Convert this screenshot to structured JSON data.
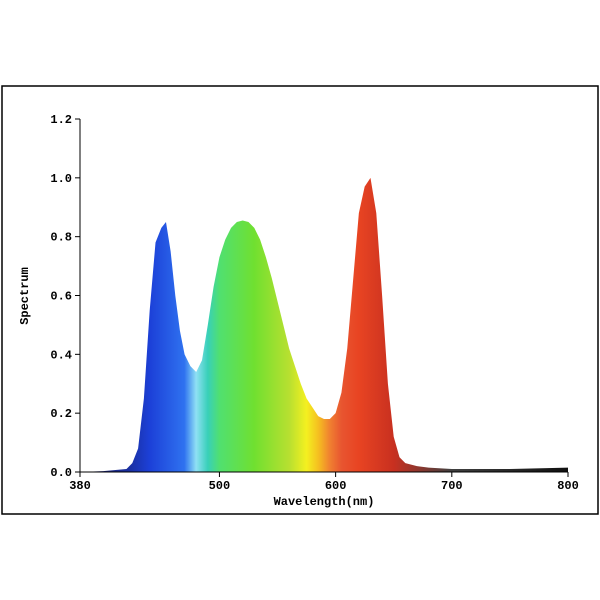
{
  "chart_data": {
    "type": "area",
    "xlabel": "Wavelength(nm)",
    "ylabel": "Spectrum",
    "x": [
      380,
      400,
      420,
      425,
      430,
      435,
      440,
      445,
      450,
      454,
      458,
      462,
      466,
      470,
      475,
      480,
      485,
      490,
      495,
      500,
      505,
      510,
      515,
      520,
      525,
      530,
      535,
      540,
      545,
      550,
      555,
      560,
      565,
      570,
      575,
      580,
      585,
      590,
      595,
      600,
      605,
      610,
      615,
      620,
      625,
      630,
      635,
      640,
      645,
      650,
      655,
      660,
      670,
      680,
      700,
      750,
      800
    ],
    "values": [
      0,
      0.003,
      0.01,
      0.03,
      0.08,
      0.25,
      0.55,
      0.78,
      0.83,
      0.85,
      0.75,
      0.6,
      0.48,
      0.4,
      0.36,
      0.34,
      0.38,
      0.5,
      0.63,
      0.73,
      0.79,
      0.83,
      0.85,
      0.855,
      0.85,
      0.83,
      0.79,
      0.73,
      0.66,
      0.58,
      0.5,
      0.42,
      0.36,
      0.3,
      0.25,
      0.22,
      0.19,
      0.18,
      0.18,
      0.2,
      0.27,
      0.42,
      0.65,
      0.88,
      0.97,
      1.0,
      0.88,
      0.6,
      0.3,
      0.12,
      0.05,
      0.03,
      0.02,
      0.015,
      0.01,
      0.01,
      0.015
    ],
    "xlim": [
      380,
      800
    ],
    "ylim": [
      0,
      1.2
    ],
    "xticks": [
      380,
      500,
      600,
      700,
      800
    ],
    "yticks": [
      {
        "value": 0,
        "label": "0.0"
      },
      0.2,
      0.4,
      0.6,
      0.8,
      {
        "value": 1,
        "label": "1.0"
      },
      1.2
    ]
  }
}
